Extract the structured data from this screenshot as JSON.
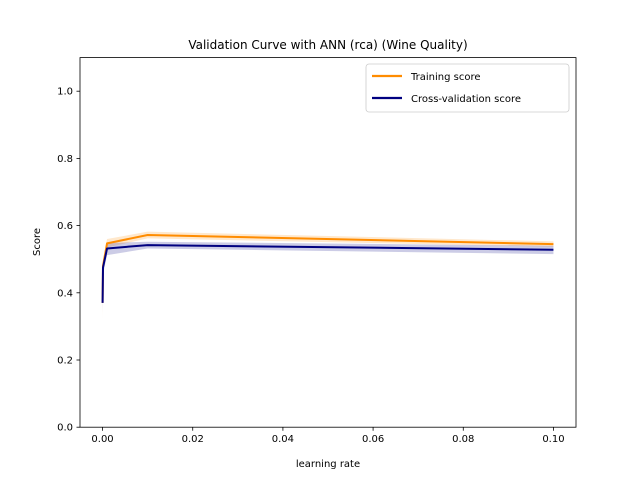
{
  "chart_data": {
    "type": "line",
    "title": "Validation Curve with ANN (rca) (Wine Quality)",
    "xlabel": "learning rate",
    "ylabel": "Score",
    "xlim": [
      -0.005,
      0.105
    ],
    "ylim": [
      0.0,
      1.1
    ],
    "xticks": [
      0.0,
      0.02,
      0.04,
      0.06,
      0.08,
      0.1
    ],
    "xtick_labels": [
      "0.00",
      "0.02",
      "0.04",
      "0.06",
      "0.08",
      "0.10"
    ],
    "yticks": [
      0.0,
      0.2,
      0.4,
      0.6,
      0.8,
      1.0
    ],
    "ytick_labels": [
      "0.0",
      "0.2",
      "0.4",
      "0.6",
      "0.8",
      "1.0"
    ],
    "grid": false,
    "legend_position": "top-right",
    "x": [
      1e-05,
      0.0001,
      0.001,
      0.01,
      0.1
    ],
    "series": [
      {
        "name": "Training score",
        "color": "#ff8c00",
        "values": [
          0.37,
          0.48,
          0.547,
          0.572,
          0.545
        ],
        "band_low": [
          0.32,
          0.46,
          0.535,
          0.562,
          0.537
        ],
        "band_high": [
          0.41,
          0.5,
          0.56,
          0.582,
          0.553
        ]
      },
      {
        "name": "Cross-validation score",
        "color": "#000080",
        "values": [
          0.37,
          0.475,
          0.532,
          0.542,
          0.528
        ],
        "band_low": [
          0.34,
          0.455,
          0.512,
          0.532,
          0.515
        ],
        "band_high": [
          0.4,
          0.49,
          0.548,
          0.552,
          0.54
        ]
      }
    ]
  }
}
